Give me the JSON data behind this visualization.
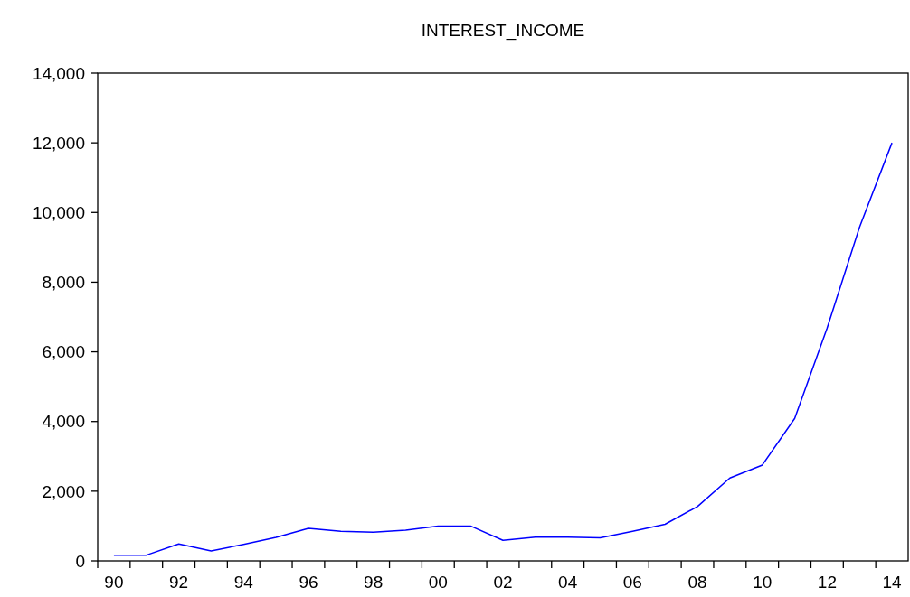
{
  "chart_data": {
    "type": "line",
    "title": "INTEREST_INCOME",
    "categories": [
      "90",
      null,
      "92",
      null,
      "94",
      null,
      "96",
      null,
      "98",
      null,
      "00",
      null,
      "02",
      null,
      "04",
      null,
      "06",
      null,
      "08",
      null,
      "10",
      null,
      "12",
      null,
      "14"
    ],
    "series": [
      {
        "color": "#0000ff",
        "values": [
          165,
          165,
          485,
          285,
          475,
          675,
          935,
          850,
          820,
          880,
          1000,
          1000,
          590,
          680,
          680,
          660,
          850,
          1050,
          1560,
          2380,
          2750,
          4090,
          6680,
          9580,
          12000
        ]
      }
    ],
    "ylim": [
      0,
      14000
    ],
    "yticks": [
      {
        "value": 0,
        "label": "0"
      },
      {
        "value": 2000,
        "label": "2,000"
      },
      {
        "value": 4000,
        "label": "4,000"
      },
      {
        "value": 6000,
        "label": "6,000"
      },
      {
        "value": 8000,
        "label": "8,000"
      },
      {
        "value": 10000,
        "label": "10,000"
      },
      {
        "value": 12000,
        "label": "12,000"
      },
      {
        "value": 14000,
        "label": "14,000"
      }
    ],
    "grid": false,
    "legend": false
  }
}
